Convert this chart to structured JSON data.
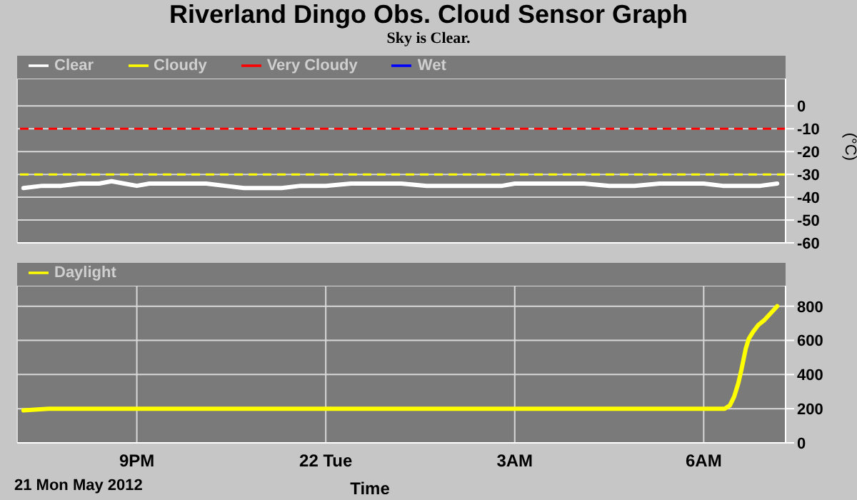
{
  "chart_data": [
    {
      "type": "line",
      "title": "Riverland Dingo Obs. Cloud Sensor Graph",
      "subtitle": "Sky is Clear.",
      "ylabel": "(°C)",
      "x": [
        "2012-05-21T19:12",
        "2012-05-21T19:30",
        "2012-05-21T19:48",
        "2012-05-21T20:06",
        "2012-05-21T20:24",
        "2012-05-21T20:36",
        "2012-05-21T20:48",
        "2012-05-21T21:00",
        "2012-05-21T21:12",
        "2012-05-21T21:30",
        "2012-05-21T21:48",
        "2012-05-21T22:06",
        "2012-05-21T22:24",
        "2012-05-21T22:42",
        "2012-05-21T23:00",
        "2012-05-21T23:18",
        "2012-05-21T23:36",
        "2012-05-22T00:00",
        "2012-05-22T00:24",
        "2012-05-22T00:48",
        "2012-05-22T01:12",
        "2012-05-22T01:36",
        "2012-05-22T02:00",
        "2012-05-22T02:24",
        "2012-05-22T02:48",
        "2012-05-22T03:00",
        "2012-05-22T03:18",
        "2012-05-22T03:42",
        "2012-05-22T04:06",
        "2012-05-22T04:30",
        "2012-05-22T04:54",
        "2012-05-22T05:18",
        "2012-05-22T05:42",
        "2012-05-22T06:00",
        "2012-05-22T06:18",
        "2012-05-22T06:36",
        "2012-05-22T06:54",
        "2012-05-22T07:10"
      ],
      "series": [
        {
          "name": "Clear",
          "color": "#ffffff",
          "values": [
            -36,
            -35,
            -35,
            -34,
            -34,
            -33,
            -34,
            -35,
            -34,
            -34,
            -34,
            -34,
            -35,
            -36,
            -36,
            -36,
            -35,
            -35,
            -34,
            -34,
            -34,
            -35,
            -35,
            -35,
            -35,
            -34,
            -34,
            -34,
            -34,
            -35,
            -35,
            -34,
            -34,
            -34,
            -35,
            -35,
            -35,
            -34
          ]
        },
        {
          "name": "Cloudy",
          "color": "#ffff00",
          "values": [
            null,
            null,
            null,
            null,
            null,
            null,
            null,
            null,
            null,
            null,
            null,
            null,
            null,
            null,
            null,
            null,
            null,
            null,
            null,
            null,
            null,
            null,
            null,
            null,
            null,
            null,
            null,
            null,
            null,
            null,
            null,
            null,
            null,
            null,
            null,
            null,
            null,
            null
          ]
        },
        {
          "name": "Very Cloudy",
          "color": "#ff0000",
          "values": [
            null,
            null,
            null,
            null,
            null,
            null,
            null,
            null,
            null,
            null,
            null,
            null,
            null,
            null,
            null,
            null,
            null,
            null,
            null,
            null,
            null,
            null,
            null,
            null,
            null,
            null,
            null,
            null,
            null,
            null,
            null,
            null,
            null,
            null,
            null,
            null,
            null,
            null
          ]
        },
        {
          "name": "Wet",
          "color": "#0000ff",
          "values": [
            null,
            null,
            null,
            null,
            null,
            null,
            null,
            null,
            null,
            null,
            null,
            null,
            null,
            null,
            null,
            null,
            null,
            null,
            null,
            null,
            null,
            null,
            null,
            null,
            null,
            null,
            null,
            null,
            null,
            null,
            null,
            null,
            null,
            null,
            null,
            null,
            null,
            null
          ]
        }
      ],
      "xlim": [
        "2012-05-21T19:06",
        "2012-05-22T07:18"
      ],
      "xticks": [
        {
          "value": "2012-05-21T21:00",
          "label": null
        },
        {
          "value": "2012-05-22T00:00",
          "label": null
        },
        {
          "value": "2012-05-22T03:00",
          "label": null
        },
        {
          "value": "2012-05-22T06:00",
          "label": null
        }
      ],
      "ylim": [
        -60,
        12
      ],
      "yticks": [
        -60,
        -50,
        -40,
        -30,
        -20,
        -10,
        0
      ],
      "ref_lines": [
        {
          "axis": "y",
          "value": -10,
          "color": "#ff0000",
          "line_style": "dashed"
        },
        {
          "axis": "y",
          "value": -30,
          "color": "#ffff00",
          "line_style": "dashed"
        }
      ],
      "grid": true,
      "legend": "top left",
      "tick_labels": "y",
      "line_style": "solid"
    },
    {
      "type": "line",
      "xlabel": "Time",
      "annotations": [
        "21 Mon May 2012"
      ],
      "x": [
        "2012-05-21T19:12",
        "2012-05-21T19:36",
        "2012-05-21T20:00",
        "2012-05-21T20:24",
        "2012-05-21T20:48",
        "2012-05-21T21:12",
        "2012-05-21T21:36",
        "2012-05-21T22:00",
        "2012-05-21T22:30",
        "2012-05-21T23:00",
        "2012-05-21T23:30",
        "2012-05-22T00:00",
        "2012-05-22T00:30",
        "2012-05-22T01:00",
        "2012-05-22T01:30",
        "2012-05-22T02:00",
        "2012-05-22T02:30",
        "2012-05-22T03:00",
        "2012-05-22T03:30",
        "2012-05-22T04:00",
        "2012-05-22T04:30",
        "2012-05-22T05:00",
        "2012-05-22T05:30",
        "2012-05-22T06:00",
        "2012-05-22T06:20",
        "2012-05-22T06:25",
        "2012-05-22T06:29",
        "2012-05-22T06:33",
        "2012-05-22T06:36",
        "2012-05-22T06:40",
        "2012-05-22T06:43",
        "2012-05-22T06:47",
        "2012-05-22T06:52",
        "2012-05-22T06:58",
        "2012-05-22T07:04",
        "2012-05-22T07:10"
      ],
      "series": [
        {
          "name": "Daylight",
          "color": "#ffff00",
          "values": [
            190,
            200,
            200,
            200,
            200,
            200,
            200,
            200,
            200,
            200,
            200,
            200,
            200,
            200,
            200,
            200,
            200,
            200,
            200,
            200,
            200,
            200,
            200,
            200,
            200,
            220,
            270,
            350,
            430,
            550,
            610,
            650,
            690,
            720,
            760,
            800
          ]
        }
      ],
      "xlim": [
        "2012-05-21T19:06",
        "2012-05-22T07:18"
      ],
      "xticks": [
        {
          "value": "2012-05-21T21:00",
          "label": "9PM"
        },
        {
          "value": "2012-05-22T00:00",
          "label": "22 Tue"
        },
        {
          "value": "2012-05-22T03:00",
          "label": "3AM"
        },
        {
          "value": "2012-05-22T06:00",
          "label": "6AM"
        }
      ],
      "ylim": [
        0,
        920
      ],
      "yticks": [
        0,
        200,
        400,
        600,
        800
      ],
      "grid": true,
      "legend": "top left",
      "line_style": "solid"
    }
  ]
}
